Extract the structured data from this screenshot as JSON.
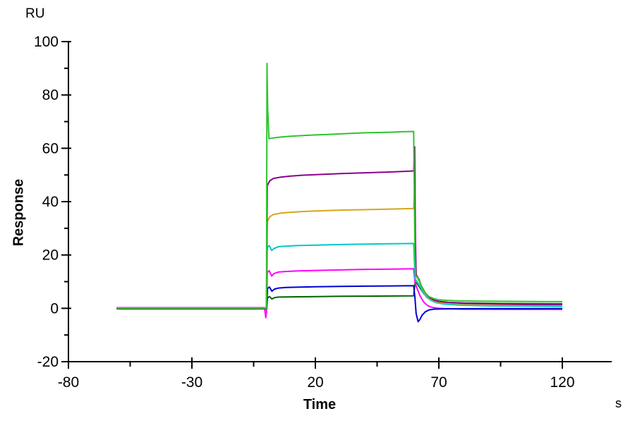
{
  "labels": {
    "y_unit": "RU",
    "y_title": "Response",
    "x_title": "Time",
    "x_unit": "s"
  },
  "chart_data": {
    "type": "line",
    "title": "",
    "xlabel": "Time",
    "x_unit": "s",
    "ylabel": "Response",
    "y_unit": "RU",
    "xlim": [
      -80,
      140
    ],
    "ylim": [
      -20,
      100
    ],
    "x_ticks": [
      -80,
      -30,
      20,
      70,
      120
    ],
    "x_minor_ticks": [
      -55,
      -5,
      45,
      95
    ],
    "y_ticks": [
      100,
      80,
      60,
      40,
      20,
      0,
      -20
    ],
    "y_minor_ticks": [
      90,
      70,
      50,
      30,
      10,
      -10
    ],
    "grid": false,
    "legend": "none",
    "description": "SPR sensorgram: 7 concentration traces, baseline t=-60..0 s at 0 RU, association phase t=0..60 s, dissociation from t=60 s, traces end at t=120 s",
    "axis_color": "#000000",
    "series": [
      {
        "name": "dark-green",
        "color": "#006400",
        "points": [
          [
            -60.5,
            -0.1
          ],
          [
            -30,
            -0.1
          ],
          [
            -0.5,
            -0.1
          ],
          [
            0.3,
            -0.1
          ],
          [
            0.6,
            3.9
          ],
          [
            1.4,
            4.4
          ],
          [
            2.4,
            3.5
          ],
          [
            3.4,
            4.0
          ],
          [
            5,
            4.2
          ],
          [
            10,
            4.3
          ],
          [
            20,
            4.4
          ],
          [
            30,
            4.5
          ],
          [
            40,
            4.55
          ],
          [
            50,
            4.6
          ],
          [
            59.8,
            4.7
          ],
          [
            60.4,
            9.8
          ],
          [
            61.3,
            9.2
          ],
          [
            62.5,
            7.4
          ],
          [
            64,
            5.4
          ],
          [
            66,
            3.9
          ],
          [
            68,
            3.0
          ],
          [
            70,
            2.6
          ],
          [
            74,
            2.2
          ],
          [
            80,
            2.0
          ],
          [
            95,
            1.8
          ],
          [
            120,
            1.7
          ]
        ]
      },
      {
        "name": "magenta",
        "color": "#ff00ff",
        "points": [
          [
            -60.5,
            0.2
          ],
          [
            -30,
            0.2
          ],
          [
            -0.6,
            0.2
          ],
          [
            -0.1,
            -3.5
          ],
          [
            0.2,
            -1.5
          ],
          [
            0.5,
            13.4
          ],
          [
            1.3,
            14.1
          ],
          [
            2.3,
            12.1
          ],
          [
            3.2,
            13.0
          ],
          [
            5,
            13.6
          ],
          [
            8,
            13.8
          ],
          [
            12,
            14.0
          ],
          [
            20,
            14.2
          ],
          [
            30,
            14.4
          ],
          [
            40,
            14.6
          ],
          [
            50,
            14.7
          ],
          [
            59.8,
            14.8
          ],
          [
            60.4,
            9.5
          ],
          [
            61.2,
            7.5
          ],
          [
            62.5,
            4.4
          ],
          [
            64,
            2.2
          ],
          [
            65.5,
            1.0
          ],
          [
            67,
            0.4
          ],
          [
            69,
            0.1
          ],
          [
            72,
            -0.1
          ],
          [
            80,
            -0.3
          ],
          [
            100,
            -0.4
          ],
          [
            120,
            -0.4
          ]
        ]
      },
      {
        "name": "blue",
        "color": "#0000d2",
        "points": [
          [
            -60.5,
            0.15
          ],
          [
            -30,
            0.15
          ],
          [
            -0.5,
            0.15
          ],
          [
            0.3,
            0.15
          ],
          [
            0.6,
            7.4
          ],
          [
            1.4,
            8.0
          ],
          [
            2.4,
            6.4
          ],
          [
            3.4,
            7.2
          ],
          [
            5,
            7.6
          ],
          [
            8,
            7.8
          ],
          [
            12,
            7.9
          ],
          [
            20,
            8.1
          ],
          [
            30,
            8.2
          ],
          [
            40,
            8.3
          ],
          [
            50,
            8.4
          ],
          [
            59.8,
            8.5
          ],
          [
            60.3,
            4.0
          ],
          [
            60.8,
            -2.0
          ],
          [
            61.6,
            -5.0
          ],
          [
            62.3,
            -4.2
          ],
          [
            63.2,
            -2.6
          ],
          [
            64.5,
            -1.3
          ],
          [
            66,
            -0.6
          ],
          [
            68,
            -0.3
          ],
          [
            72,
            -0.2
          ],
          [
            85,
            -0.15
          ],
          [
            120,
            -0.1
          ]
        ]
      },
      {
        "name": "cyan",
        "color": "#00c8c8",
        "points": [
          [
            -60.5,
            -0.1
          ],
          [
            -30,
            -0.1
          ],
          [
            -0.5,
            -0.1
          ],
          [
            0.2,
            -0.1
          ],
          [
            0.5,
            22.8
          ],
          [
            1.3,
            23.5
          ],
          [
            2.3,
            21.7
          ],
          [
            3.2,
            22.4
          ],
          [
            5,
            23.1
          ],
          [
            8,
            23.3
          ],
          [
            12,
            23.5
          ],
          [
            20,
            23.7
          ],
          [
            30,
            23.9
          ],
          [
            40,
            24.1
          ],
          [
            50,
            24.2
          ],
          [
            59.8,
            24.3
          ],
          [
            60.4,
            11.0
          ],
          [
            61,
            10.2
          ],
          [
            62,
            8.8
          ],
          [
            63.5,
            6.2
          ],
          [
            65,
            4.2
          ],
          [
            67,
            2.9
          ],
          [
            69,
            2.1
          ],
          [
            72,
            1.6
          ],
          [
            78,
            1.2
          ],
          [
            90,
            0.9
          ],
          [
            105,
            0.8
          ],
          [
            120,
            0.7
          ]
        ]
      },
      {
        "name": "gold",
        "color": "#d6a51c",
        "points": [
          [
            -60.5,
            0.1
          ],
          [
            -30,
            0.1
          ],
          [
            -0.5,
            0.1
          ],
          [
            0.2,
            0.1
          ],
          [
            0.5,
            32.5
          ],
          [
            1.5,
            34.3
          ],
          [
            3,
            35.2
          ],
          [
            6,
            35.7
          ],
          [
            10,
            36.0
          ],
          [
            15,
            36.3
          ],
          [
            20,
            36.5
          ],
          [
            30,
            36.8
          ],
          [
            40,
            37.0
          ],
          [
            50,
            37.2
          ],
          [
            59.8,
            37.4
          ],
          [
            60.2,
            46.4
          ],
          [
            60.5,
            20.0
          ],
          [
            60.9,
            11.8
          ],
          [
            62,
            10.4
          ],
          [
            63.2,
            7.6
          ],
          [
            64.5,
            5.4
          ],
          [
            66,
            3.9
          ],
          [
            68,
            2.8
          ],
          [
            70,
            2.3
          ],
          [
            74,
            1.9
          ],
          [
            80,
            1.6
          ],
          [
            95,
            1.4
          ],
          [
            120,
            1.2
          ]
        ]
      },
      {
        "name": "purple",
        "color": "#8b008b",
        "points": [
          [
            -60.5,
            -0.2
          ],
          [
            -30,
            -0.2
          ],
          [
            -10,
            -0.2
          ],
          [
            -0.5,
            -0.2
          ],
          [
            0.2,
            -0.2
          ],
          [
            0.5,
            46.0
          ],
          [
            1.5,
            47.8
          ],
          [
            3,
            48.7
          ],
          [
            6,
            49.2
          ],
          [
            10,
            49.6
          ],
          [
            15,
            49.9
          ],
          [
            20,
            50.1
          ],
          [
            30,
            50.5
          ],
          [
            40,
            50.8
          ],
          [
            50,
            51.1
          ],
          [
            55,
            51.3
          ],
          [
            59.8,
            51.5
          ],
          [
            60.2,
            60.6
          ],
          [
            60.5,
            25.0
          ],
          [
            60.8,
            12.6
          ],
          [
            61.8,
            11.2
          ],
          [
            63,
            8.2
          ],
          [
            64.5,
            5.8
          ],
          [
            66,
            4.2
          ],
          [
            68,
            3.1
          ],
          [
            70,
            2.6
          ],
          [
            74,
            2.2
          ],
          [
            80,
            1.9
          ],
          [
            90,
            1.7
          ],
          [
            105,
            1.5
          ],
          [
            120,
            1.4
          ]
        ]
      },
      {
        "name": "green",
        "color": "#2fc42f",
        "points": [
          [
            -60.5,
            0
          ],
          [
            -40,
            0
          ],
          [
            -20,
            0
          ],
          [
            -5,
            0
          ],
          [
            -0.5,
            0
          ],
          [
            0.2,
            0
          ],
          [
            0.4,
            91.8
          ],
          [
            0.7,
            75.0
          ],
          [
            1.2,
            63.6
          ],
          [
            3,
            63.9
          ],
          [
            6,
            64.2
          ],
          [
            10,
            64.5
          ],
          [
            15,
            64.8
          ],
          [
            20,
            65.0
          ],
          [
            25,
            65.2
          ],
          [
            30,
            65.4
          ],
          [
            35,
            65.6
          ],
          [
            40,
            65.8
          ],
          [
            45,
            65.9
          ],
          [
            50,
            66.0
          ],
          [
            55,
            66.2
          ],
          [
            59.8,
            66.3
          ],
          [
            60.3,
            20.0
          ],
          [
            60.6,
            12.3
          ],
          [
            61.5,
            11.5
          ],
          [
            62.5,
            9.2
          ],
          [
            63.5,
            7.2
          ],
          [
            64.5,
            5.8
          ],
          [
            66,
            4.4
          ],
          [
            68,
            3.6
          ],
          [
            70,
            3.2
          ],
          [
            73,
            3.0
          ],
          [
            78,
            2.8
          ],
          [
            85,
            2.7
          ],
          [
            100,
            2.6
          ],
          [
            120,
            2.5
          ]
        ]
      }
    ]
  }
}
